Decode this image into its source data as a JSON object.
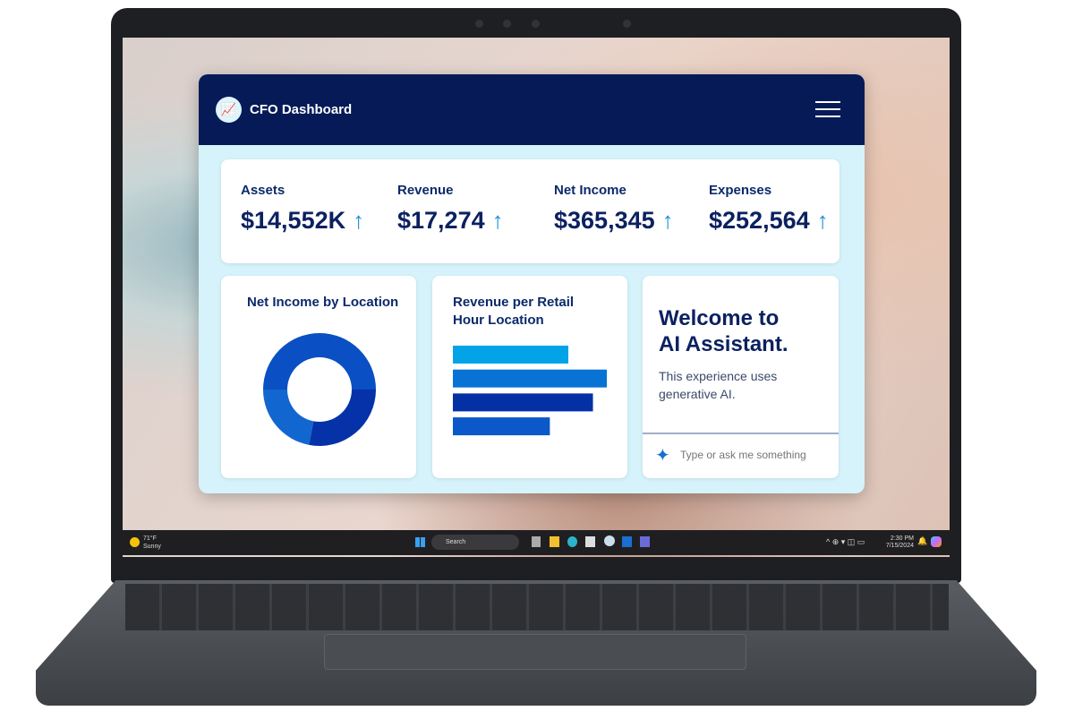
{
  "app": {
    "title": "CFO Dashboard",
    "logo_icon": "chart-icon",
    "menu_icon": "hamburger-menu-icon"
  },
  "kpis": [
    {
      "label": "Assets",
      "value": "$14,552K",
      "trend": "up"
    },
    {
      "label": "Revenue",
      "value": "$17,274",
      "trend": "up"
    },
    {
      "label": "Net Income",
      "value": "$365,345",
      "trend": "up"
    },
    {
      "label": "Expenses",
      "value": "$252,564",
      "trend": "up"
    }
  ],
  "panels": {
    "donut_title": "Net Income by Location",
    "bars_title_1": "Revenue per Retail",
    "bars_title_2": "Hour Location"
  },
  "chart_data": [
    {
      "type": "pie",
      "title": "Net Income by Location",
      "donut": true,
      "values": [
        50,
        28,
        22
      ],
      "colors": [
        "#0a4fc4",
        "#0532a8",
        "#1266d0"
      ]
    },
    {
      "type": "bar",
      "orientation": "horizontal",
      "title": "Revenue per Retail Hour Location",
      "values": [
        75,
        100,
        91,
        63
      ],
      "colors": [
        "#03a3e8",
        "#0873d4",
        "#0430a6",
        "#0a58c9"
      ]
    }
  ],
  "assistant": {
    "heading_1": "Welcome to",
    "heading_2": "AI Assistant.",
    "sub_1": "This experience uses",
    "sub_2": "generative AI.",
    "placeholder": "Type or ask me something",
    "icon": "sparkle-icon"
  },
  "taskbar": {
    "weather_temp": "71°F",
    "weather_desc": "Sunny",
    "search": "Search",
    "time": "2:30 PM",
    "date": "7/15/2024"
  }
}
